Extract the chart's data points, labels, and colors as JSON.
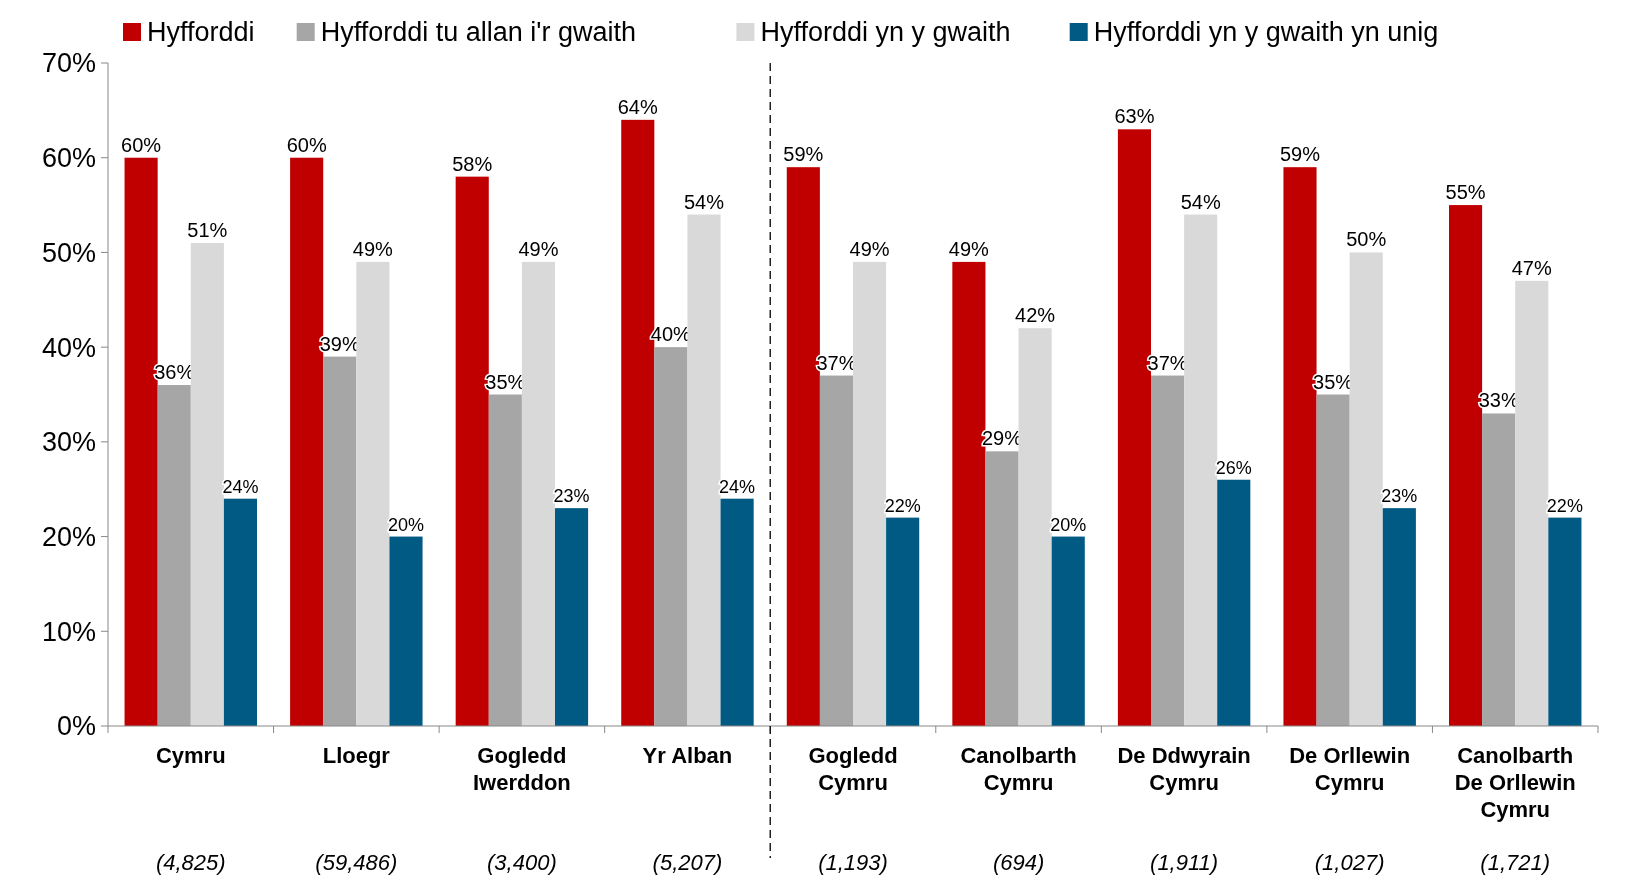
{
  "chart_data": {
    "type": "bar",
    "categories": [
      "Cymru",
      "Lloegr",
      "Gogledd\nIwerddon",
      "Yr Alban",
      "Gogledd\nCymru",
      "Canolbarth\nCymru",
      "De Ddwyrain\nCymru",
      "De Orllewin\nCymru",
      "Canolbarth\nDe Orllewin\nCymru"
    ],
    "series": [
      {
        "name": "Hyfforddi",
        "color": "#c00000",
        "values": [
          60,
          60,
          58,
          64,
          59,
          49,
          63,
          59,
          55
        ],
        "value_labels": [
          "60%",
          "60%",
          "58%",
          "64%",
          "59%",
          "49%",
          "63%",
          "59%",
          "55%"
        ]
      },
      {
        "name": "Hyfforddi tu allan i'r gwaith",
        "color": "#a6a6a6",
        "values": [
          36,
          39,
          35,
          40,
          37,
          29,
          37,
          35,
          33
        ],
        "value_labels": [
          "36%",
          "39%",
          "35%",
          "40%",
          "37%",
          "29%",
          "37%",
          "35%",
          "33%"
        ]
      },
      {
        "name": "Hyfforddi yn y gwaith",
        "color": "#d9d9d9",
        "values": [
          51,
          49,
          49,
          54,
          49,
          42,
          54,
          50,
          47
        ],
        "value_labels": [
          "51%",
          "49%",
          "49%",
          "54%",
          "49%",
          "42%",
          "54%",
          "50%",
          "47%"
        ]
      },
      {
        "name": "Hyfforddi yn y gwaith yn unig",
        "color": "#005a84",
        "values": [
          24,
          20,
          23,
          24,
          22,
          20,
          26,
          23,
          22
        ],
        "value_labels": [
          "24%",
          "20%",
          "23%",
          "24%",
          "22%",
          "20%",
          "26%",
          "23%",
          "22%"
        ]
      }
    ],
    "ylim": [
      0,
      70
    ],
    "yticks": [
      {
        "value": 0,
        "label": "0%"
      },
      {
        "value": 10,
        "label": "10%"
      },
      {
        "value": 20,
        "label": "20%"
      },
      {
        "value": 30,
        "label": "30%"
      },
      {
        "value": 40,
        "label": "40%"
      },
      {
        "value": 50,
        "label": "50%"
      },
      {
        "value": 60,
        "label": "60%"
      },
      {
        "value": 70,
        "label": "70%"
      }
    ],
    "annotations": [
      "(4,825)",
      "(59,486)",
      "(3,400)",
      "(5,207)",
      "(1,193)",
      "(694)",
      "(1,911)",
      "(1,027)",
      "(1,721)"
    ],
    "legend": "top",
    "grid": false
  }
}
